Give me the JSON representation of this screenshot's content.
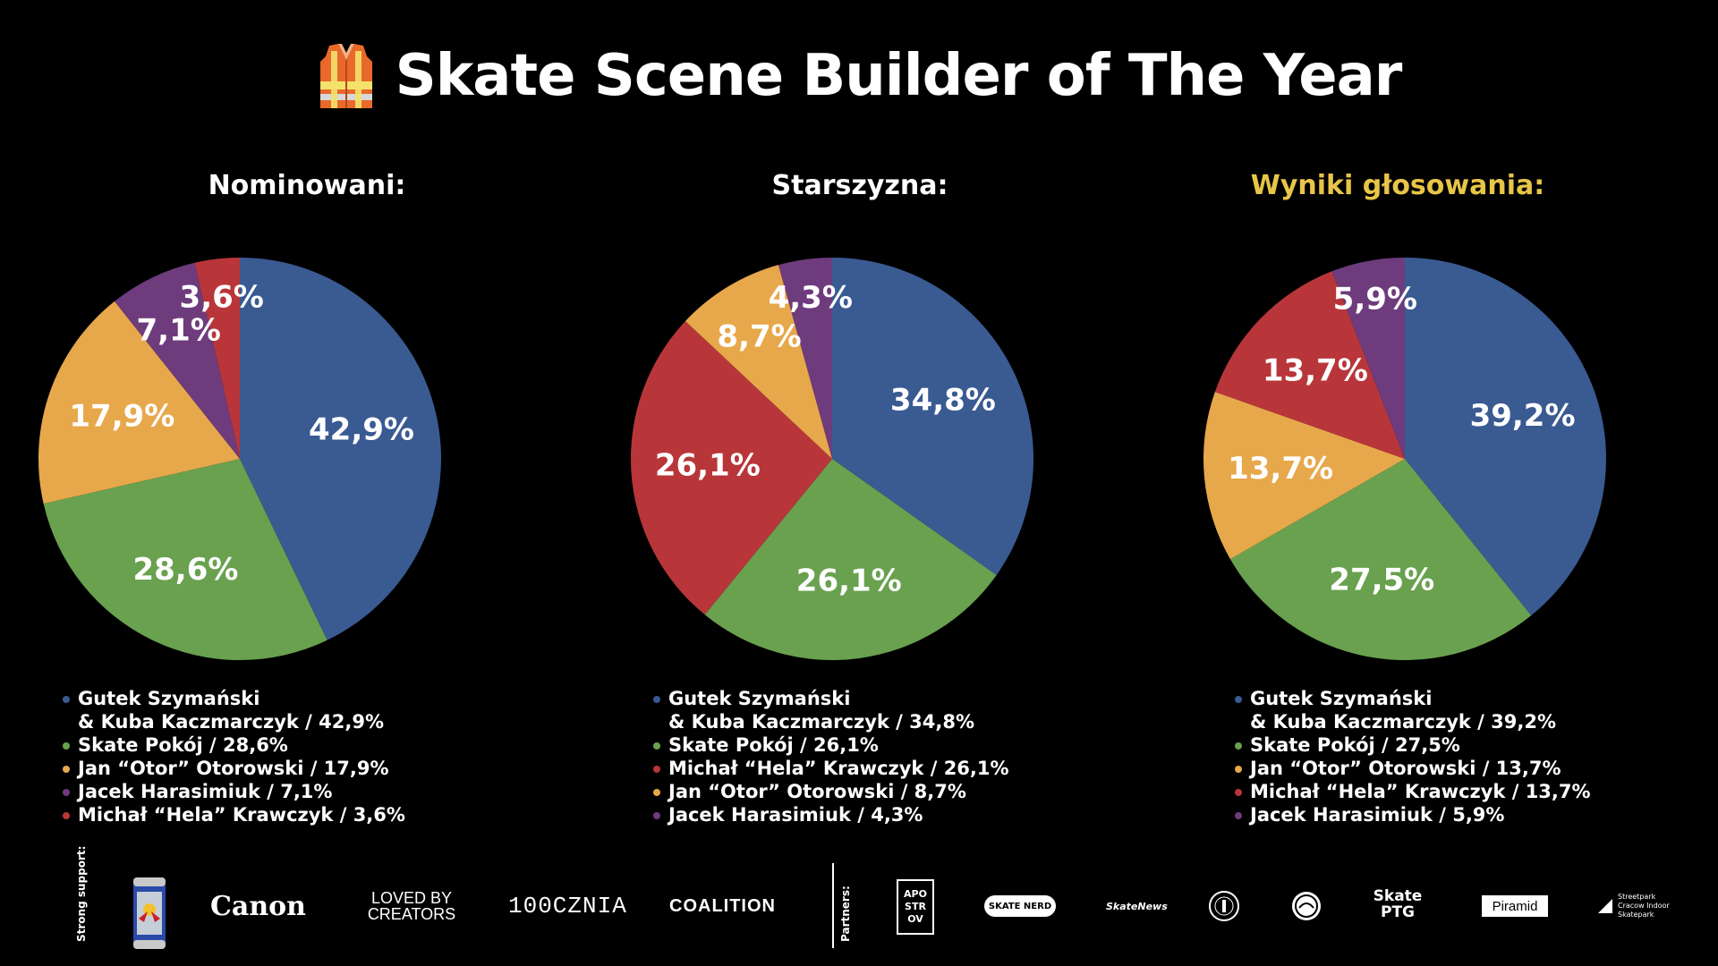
{
  "title": {
    "text": "Skate Scene Builder of The Year",
    "icon": "safety-vest-icon"
  },
  "colors": {
    "blue": "#3a5a92",
    "green": "#69a14f",
    "orange": "#e7a84b",
    "purple": "#6e3b7d",
    "red": "#b8363a",
    "highlight": "#e8c547"
  },
  "chart_data": [
    {
      "type": "pie",
      "title": "Nominowani:",
      "labels": [
        "Gutek Szymański & Kuba Kaczmarczyk",
        "Skate Pokój",
        "Jan “Otor” Otorowski",
        "Jacek Harasimiuk",
        "Michał “Hela” Krawczyk"
      ],
      "values": [
        42.9,
        28.6,
        17.9,
        7.1,
        3.6
      ],
      "value_labels": [
        "42,9%",
        "28,6%",
        "17,9%",
        "7,1%",
        "3,6%"
      ],
      "colors": [
        "#3a5a92",
        "#69a14f",
        "#e7a84b",
        "#6e3b7d",
        "#b8363a"
      ],
      "legend": [
        {
          "line1": "Gutek Szymański",
          "line2": "& Kuba Kaczmarczyk / 42,9%",
          "color": "#3a5a92"
        },
        {
          "line1": "Skate Pokój / 28,6%",
          "color": "#69a14f"
        },
        {
          "line1": "Jan “Otor” Otorowski / 17,9%",
          "color": "#e7a84b"
        },
        {
          "line1": "Jacek Harasimiuk / 7,1%",
          "color": "#6e3b7d"
        },
        {
          "line1": "Michał “Hela” Krawczyk / 3,6%",
          "color": "#b8363a"
        }
      ]
    },
    {
      "type": "pie",
      "title": "Starszyzna:",
      "labels": [
        "Gutek Szymański & Kuba Kaczmarczyk",
        "Skate Pokój",
        "Michał “Hela” Krawczyk",
        "Jan “Otor” Otorowski",
        "Jacek Harasimiuk"
      ],
      "values": [
        34.8,
        26.1,
        26.1,
        8.7,
        4.3
      ],
      "value_labels": [
        "34,8%",
        "26,1%",
        "26,1%",
        "8,7%",
        "4,3%"
      ],
      "colors": [
        "#3a5a92",
        "#69a14f",
        "#b8363a",
        "#e7a84b",
        "#6e3b7d"
      ],
      "legend": [
        {
          "line1": "Gutek Szymański",
          "line2": "& Kuba Kaczmarczyk / 34,8%",
          "color": "#3a5a92"
        },
        {
          "line1": "Skate Pokój / 26,1%",
          "color": "#69a14f"
        },
        {
          "line1": "Michał “Hela” Krawczyk / 26,1%",
          "color": "#b8363a"
        },
        {
          "line1": "Jan “Otor” Otorowski / 8,7%",
          "color": "#e7a84b"
        },
        {
          "line1": "Jacek Harasimiuk / 4,3%",
          "color": "#6e3b7d"
        }
      ]
    },
    {
      "type": "pie",
      "title": "Wyniki głosowania:",
      "title_color": "#e8c547",
      "labels": [
        "Gutek Szymański & Kuba Kaczmarczyk",
        "Skate Pokój",
        "Jan “Otor” Otorowski",
        "Michał “Hela” Krawczyk",
        "Jacek Harasimiuk"
      ],
      "values": [
        39.2,
        27.5,
        13.7,
        13.7,
        5.9
      ],
      "value_labels": [
        "39,2%",
        "27,5%",
        "13,7%",
        "13,7%",
        "5,9%"
      ],
      "colors": [
        "#3a5a92",
        "#69a14f",
        "#e7a84b",
        "#b8363a",
        "#6e3b7d"
      ],
      "legend": [
        {
          "line1": "Gutek Szymański",
          "line2": "& Kuba Kaczmarczyk / 39,2%",
          "color": "#3a5a92"
        },
        {
          "line1": "Skate Pokój / 27,5%",
          "color": "#69a14f"
        },
        {
          "line1": "Jan “Otor” Otorowski / 13,7%",
          "color": "#e7a84b"
        },
        {
          "line1": "Michał “Hela” Krawczyk / 13,7%",
          "color": "#b8363a"
        },
        {
          "line1": "Jacek Harasimiuk / 5,9%",
          "color": "#6e3b7d"
        }
      ]
    }
  ],
  "footer": {
    "strong_support_label": "Strong support:",
    "partners_label": "Partners:",
    "sponsor_logos": [
      "Canon",
      "LOVED BY CREATORS",
      "100CZNIA",
      "COALITION"
    ],
    "partner_logos": [
      "APO STR OV",
      "SKATE NERD",
      "SkateNews",
      "Piramid",
      "Streetpark Cracow Indoor Skatepark",
      "Skate PTG"
    ]
  }
}
